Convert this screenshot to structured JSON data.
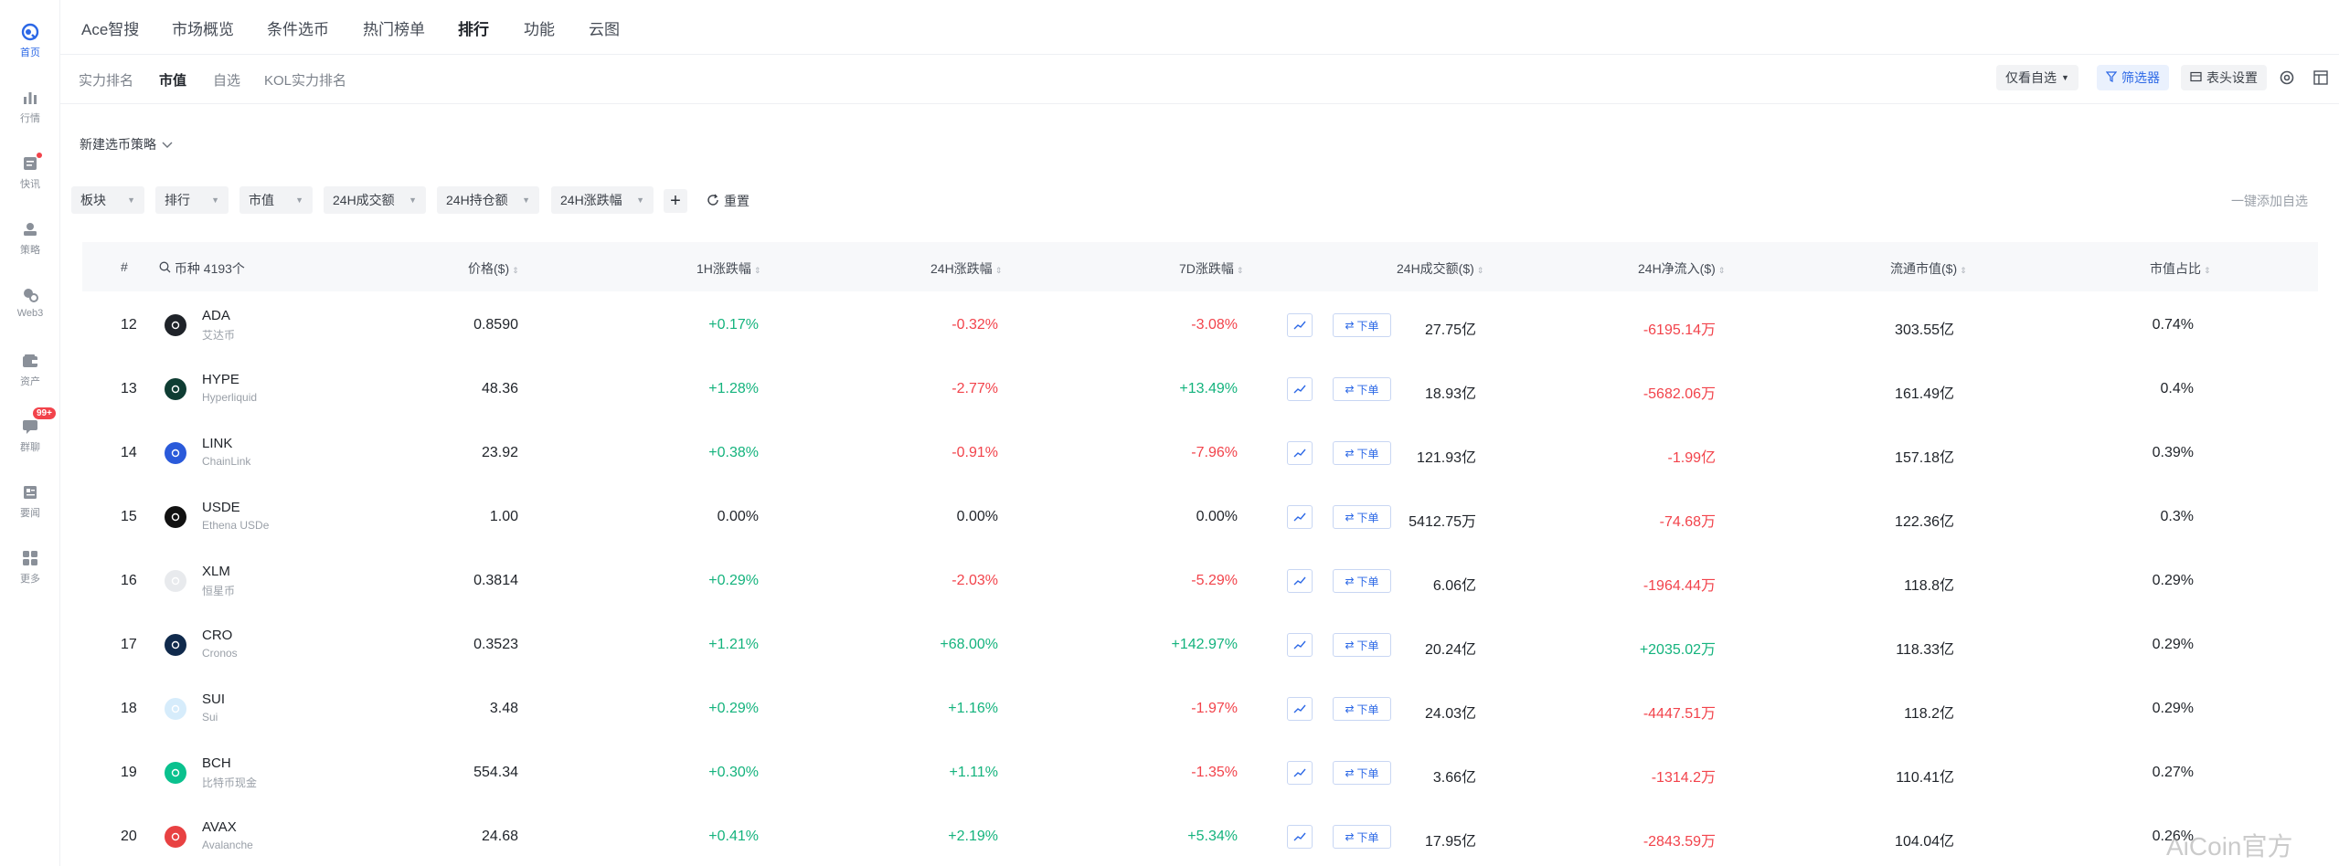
{
  "rail": [
    {
      "label": "首页",
      "icon": "home-icon",
      "active": true
    },
    {
      "label": "行情",
      "icon": "chart-bar-icon"
    },
    {
      "label": "快讯",
      "icon": "news-icon",
      "dot": true
    },
    {
      "label": "策略",
      "icon": "strategy-icon"
    },
    {
      "label": "Web3",
      "icon": "web3-icon"
    },
    {
      "label": "资产",
      "icon": "wallet-icon"
    },
    {
      "label": "群聊",
      "icon": "chat-icon",
      "badge": "99+"
    },
    {
      "label": "要闻",
      "icon": "headline-icon"
    },
    {
      "label": "更多",
      "icon": "grid-more-icon"
    }
  ],
  "topnav": [
    "Ace智搜",
    "市场概览",
    "条件选币",
    "热门榜单",
    "排行",
    "功能",
    "云图"
  ],
  "topnav_active": "排行",
  "subnav": [
    "实力排名",
    "市值",
    "自选",
    "KOL实力排名"
  ],
  "subnav_active": "市值",
  "toolbar": {
    "watch_only": "仅看自选",
    "filter": "筛选器",
    "column_settings": "表头设置"
  },
  "strategy": "新建选币策略",
  "filters": [
    "板块",
    "排行",
    "市值",
    "24H成交额",
    "24H持仓额",
    "24H涨跌幅"
  ],
  "reset": "重置",
  "add_all_watch": "一键添加自选",
  "table": {
    "headers": {
      "rank": "#",
      "coin": "币种 4193个",
      "price": "价格($)",
      "h1": "1H涨跌幅",
      "h24": "24H涨跌幅",
      "d7": "7D涨跌幅",
      "vol": "24H成交额($)",
      "inflow": "24H净流入($)",
      "mcap": "流通市值($)",
      "share": "市值占比"
    },
    "order_label": "下单",
    "rows": [
      {
        "rank": "12",
        "symbol": "ADA",
        "name": "艾达币",
        "price": "0.8590",
        "h1": "+0.17%",
        "h24": "-0.32%",
        "d7": "-3.08%",
        "vol": "27.75亿",
        "inflow": "-6195.14万",
        "mcap": "303.55亿",
        "share": "0.74%",
        "color": "#1f2329"
      },
      {
        "rank": "13",
        "symbol": "HYPE",
        "name": "Hyperliquid",
        "price": "48.36",
        "h1": "+1.28%",
        "h24": "-2.77%",
        "d7": "+13.49%",
        "vol": "18.93亿",
        "inflow": "-5682.06万",
        "mcap": "161.49亿",
        "share": "0.4%",
        "color": "#0f3d33"
      },
      {
        "rank": "14",
        "symbol": "LINK",
        "name": "ChainLink",
        "price": "23.92",
        "h1": "+0.38%",
        "h24": "-0.91%",
        "d7": "-7.96%",
        "vol": "121.93亿",
        "inflow": "-1.99亿",
        "mcap": "157.18亿",
        "share": "0.39%",
        "color": "#2a5ada"
      },
      {
        "rank": "15",
        "symbol": "USDE",
        "name": "Ethena USDe",
        "price": "1.00",
        "h1": "0.00%",
        "h24": "0.00%",
        "d7": "0.00%",
        "vol": "5412.75万",
        "inflow": "-74.68万",
        "mcap": "122.36亿",
        "share": "0.3%",
        "color": "#111111"
      },
      {
        "rank": "16",
        "symbol": "XLM",
        "name": "恒星币",
        "price": "0.3814",
        "h1": "+0.29%",
        "h24": "-2.03%",
        "d7": "-5.29%",
        "vol": "6.06亿",
        "inflow": "-1964.44万",
        "mcap": "118.8亿",
        "share": "0.29%",
        "color": "#e8eaed"
      },
      {
        "rank": "17",
        "symbol": "CRO",
        "name": "Cronos",
        "price": "0.3523",
        "h1": "+1.21%",
        "h24": "+68.00%",
        "d7": "+142.97%",
        "vol": "20.24亿",
        "inflow": "+2035.02万",
        "mcap": "118.33亿",
        "share": "0.29%",
        "color": "#102a4c"
      },
      {
        "rank": "18",
        "symbol": "SUI",
        "name": "Sui",
        "price": "3.48",
        "h1": "+0.29%",
        "h24": "+1.16%",
        "d7": "-1.97%",
        "vol": "24.03亿",
        "inflow": "-4447.51万",
        "mcap": "118.2亿",
        "share": "0.29%",
        "color": "#d6ecfb"
      },
      {
        "rank": "19",
        "symbol": "BCH",
        "name": "比特币现金",
        "price": "554.34",
        "h1": "+0.30%",
        "h24": "+1.11%",
        "d7": "-1.35%",
        "vol": "3.66亿",
        "inflow": "-1314.2万",
        "mcap": "110.41亿",
        "share": "0.27%",
        "color": "#0ac18e"
      },
      {
        "rank": "20",
        "symbol": "AVAX",
        "name": "Avalanche",
        "price": "24.68",
        "h1": "+0.41%",
        "h24": "+2.19%",
        "d7": "+5.34%",
        "vol": "17.95亿",
        "inflow": "-2843.59万",
        "mcap": "104.04亿",
        "share": "0.26%",
        "color": "#e84142"
      }
    ]
  },
  "watermark": "AiCoin官方",
  "colors": {
    "up": "#14b37d",
    "down": "#f2434b",
    "accent": "#2c68e6"
  }
}
